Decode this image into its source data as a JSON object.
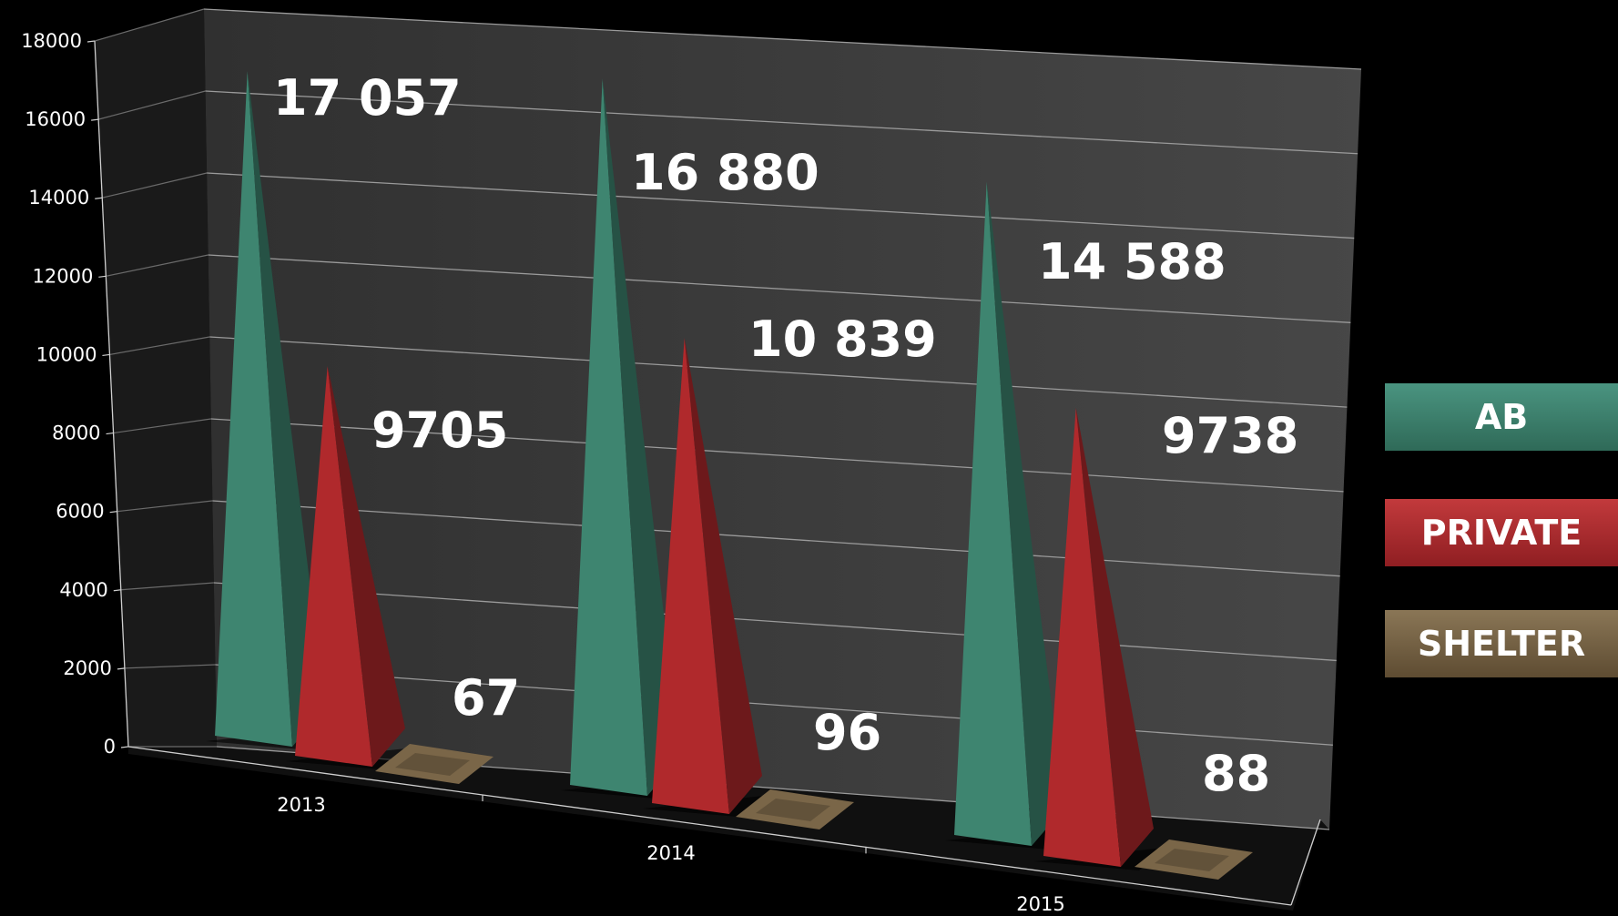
{
  "chart_data": {
    "type": "bar",
    "categories": [
      "2013",
      "2014",
      "2015"
    ],
    "series": [
      {
        "name": "AB",
        "values": [
          17057,
          16880,
          14588
        ],
        "labels": [
          "17 057",
          "16 880",
          "14 588"
        ],
        "color": "#3e8570"
      },
      {
        "name": "PRIVATE",
        "values": [
          9705,
          10839,
          9738
        ],
        "labels": [
          "9705",
          "10 839",
          "9738"
        ],
        "color": "#b0292c"
      },
      {
        "name": "SHELTER",
        "values": [
          67,
          96,
          88
        ],
        "labels": [
          "67",
          "96",
          "88"
        ],
        "color": "#7a6648"
      }
    ],
    "ylim": [
      0,
      18000
    ],
    "yticks": [
      "0",
      "2000",
      "4000",
      "6000",
      "8000",
      "10000",
      "12000",
      "14000",
      "16000",
      "18000"
    ],
    "title": "",
    "xlabel": "",
    "ylabel": "",
    "grid": true,
    "legend_position": "right",
    "background": "#000000",
    "wall_color": "#3a3a3a"
  }
}
